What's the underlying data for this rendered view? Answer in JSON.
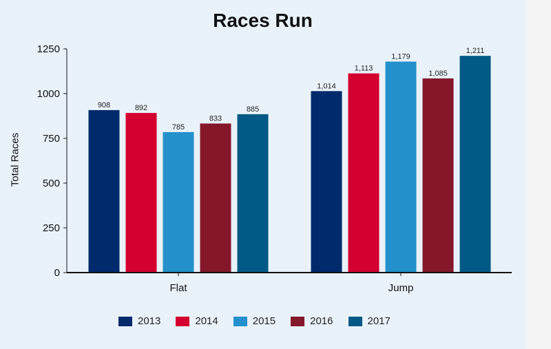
{
  "chart_data": {
    "type": "bar",
    "title": "Races Run",
    "ylabel": "Total Races",
    "xlabel": "",
    "ylim": [
      0,
      1250
    ],
    "yticks": [
      "0",
      "250",
      "500",
      "750",
      "1000",
      "1250"
    ],
    "categories": [
      "Flat",
      "Jump"
    ],
    "series": [
      {
        "name": "2013",
        "color": "#002a6b",
        "values": [
          908,
          1014
        ],
        "labels": [
          "908",
          "1,014"
        ]
      },
      {
        "name": "2014",
        "color": "#d40030",
        "values": [
          892,
          1113
        ],
        "labels": [
          "892",
          "1,113"
        ]
      },
      {
        "name": "2015",
        "color": "#2490cc",
        "values": [
          785,
          1179
        ],
        "labels": [
          "785",
          "1,179"
        ]
      },
      {
        "name": "2016",
        "color": "#84172a",
        "values": [
          833,
          1085
        ],
        "labels": [
          "833",
          "1,085"
        ]
      },
      {
        "name": "2017",
        "color": "#005a85",
        "values": [
          885,
          1211
        ],
        "labels": [
          "885",
          "1,211"
        ]
      }
    ],
    "grid": false,
    "legend": "bottom"
  }
}
